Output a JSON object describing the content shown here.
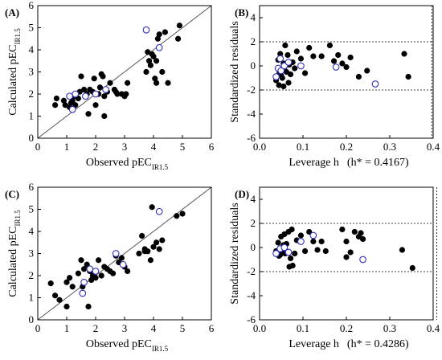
{
  "chart_data": [
    {
      "type": "scatter",
      "panel": "(A)",
      "xlabel": "Observed pEC",
      "xlabel_sub": "IR1.5",
      "ylabel": "Calculated pEC",
      "ylabel_sub": "IR1.5",
      "xlim": [
        0,
        6
      ],
      "ylim": [
        0,
        6
      ],
      "xticks": [
        "0",
        "1",
        "2",
        "3",
        "4",
        "5",
        "6"
      ],
      "yticks": [
        "0",
        "1",
        "2",
        "3",
        "4",
        "5",
        "6"
      ],
      "diagonal": true,
      "grid": false,
      "series": [
        {
          "marker": "filled",
          "color": "#000000",
          "points": [
            [
              0.6,
              1.5
            ],
            [
              0.65,
              1.8
            ],
            [
              0.9,
              1.7
            ],
            [
              0.95,
              1.5
            ],
            [
              1.1,
              1.4
            ],
            [
              1.15,
              1.6
            ],
            [
              1.2,
              1.7
            ],
            [
              1.25,
              1.9
            ],
            [
              1.3,
              1.5
            ],
            [
              1.4,
              1.8
            ],
            [
              1.45,
              2.1
            ],
            [
              1.5,
              2.8
            ],
            [
              1.6,
              2.2
            ],
            [
              1.7,
              2.0
            ],
            [
              1.8,
              2.2
            ],
            [
              1.9,
              2.1
            ],
            [
              1.95,
              2.7
            ],
            [
              2.0,
              1.5
            ],
            [
              2.1,
              2.0
            ],
            [
              2.15,
              2.3
            ],
            [
              2.2,
              2.9
            ],
            [
              2.25,
              2.8
            ],
            [
              2.3,
              1.9
            ],
            [
              2.4,
              2.1
            ],
            [
              2.5,
              2.5
            ],
            [
              2.65,
              2.2
            ],
            [
              2.7,
              2.1
            ],
            [
              2.75,
              2.0
            ],
            [
              2.9,
              2.0
            ],
            [
              3.0,
              1.9
            ],
            [
              3.05,
              2.0
            ],
            [
              3.1,
              2.5
            ],
            [
              3.75,
              3.0
            ],
            [
              3.8,
              3.9
            ],
            [
              3.85,
              3.5
            ],
            [
              3.9,
              3.3
            ],
            [
              3.95,
              3.8
            ],
            [
              4.0,
              3.7
            ],
            [
              4.05,
              2.7
            ],
            [
              4.1,
              3.5
            ],
            [
              4.15,
              4.5
            ],
            [
              4.2,
              4.7
            ],
            [
              4.3,
              3.0
            ],
            [
              4.4,
              4.8
            ],
            [
              4.5,
              2.5
            ],
            [
              4.85,
              4.5
            ],
            [
              4.9,
              5.1
            ],
            [
              4.1,
              2.5
            ],
            [
              1.75,
              1.1
            ],
            [
              2.3,
              1.0
            ]
          ]
        },
        {
          "marker": "open",
          "color": "#3333bb",
          "points": [
            [
              1.1,
              1.9
            ],
            [
              1.2,
              1.3
            ],
            [
              1.3,
              2.0
            ],
            [
              1.65,
              1.9
            ],
            [
              2.0,
              2.0
            ],
            [
              2.35,
              2.2
            ],
            [
              3.75,
              4.9
            ],
            [
              4.2,
              4.1
            ]
          ]
        }
      ]
    },
    {
      "type": "scatter",
      "panel": "(B)",
      "xlabel": "Leverage h",
      "annotation": "(h* = 0.4167)",
      "ylabel": "Standardized residuals",
      "xlim": [
        0,
        0.42
      ],
      "ylim": [
        -6,
        5
      ],
      "xticks": [
        "0.0",
        "0.1",
        "0.2",
        "0.3",
        "0.4"
      ],
      "yticks": [
        "-6",
        "-4",
        "-2",
        "0",
        "2",
        "4"
      ],
      "hlines": [
        2,
        -2
      ],
      "vline": 0.4167,
      "grid": false,
      "series": [
        {
          "marker": "filled",
          "color": "#000000",
          "points": [
            [
              0.04,
              -1.2
            ],
            [
              0.045,
              0.5
            ],
            [
              0.048,
              -0.6
            ],
            [
              0.05,
              1.0
            ],
            [
              0.052,
              -0.8
            ],
            [
              0.055,
              -1.0
            ],
            [
              0.058,
              0.2
            ],
            [
              0.06,
              -0.3
            ],
            [
              0.062,
              1.7
            ],
            [
              0.065,
              -0.5
            ],
            [
              0.068,
              0.9
            ],
            [
              0.07,
              -1.4
            ],
            [
              0.075,
              -0.7
            ],
            [
              0.08,
              0.3
            ],
            [
              0.085,
              -0.2
            ],
            [
              0.09,
              1.2
            ],
            [
              0.1,
              0.6
            ],
            [
              0.11,
              -0.6
            ],
            [
              0.12,
              1.5
            ],
            [
              0.13,
              0.8
            ],
            [
              0.15,
              0.8
            ],
            [
              0.17,
              1.7
            ],
            [
              0.18,
              0.4
            ],
            [
              0.19,
              0.9
            ],
            [
              0.2,
              0.2
            ],
            [
              0.21,
              -0.1
            ],
            [
              0.22,
              0.7
            ],
            [
              0.24,
              -0.9
            ],
            [
              0.26,
              -0.4
            ],
            [
              0.35,
              1.0
            ],
            [
              0.36,
              -0.9
            ],
            [
              0.047,
              -1.6
            ],
            [
              0.058,
              -1.7
            ],
            [
              0.072,
              0.1
            ]
          ]
        },
        {
          "marker": "open",
          "color": "#3333bb",
          "points": [
            [
              0.04,
              -0.9
            ],
            [
              0.045,
              -0.2
            ],
            [
              0.05,
              0.6
            ],
            [
              0.052,
              -0.4
            ],
            [
              0.06,
              0.0
            ],
            [
              0.07,
              0.3
            ],
            [
              0.1,
              0.0
            ],
            [
              0.185,
              -0.1
            ],
            [
              0.28,
              -1.5
            ]
          ]
        }
      ]
    },
    {
      "type": "scatter",
      "panel": "(C)",
      "xlabel": "Observed pEC",
      "xlabel_sub": "IR1.5",
      "ylabel": "Calculated pEC",
      "ylabel_sub": "IR1.5",
      "xlim": [
        0,
        6
      ],
      "ylim": [
        0,
        6
      ],
      "xticks": [
        "0",
        "1",
        "2",
        "3",
        "4",
        "5",
        "6"
      ],
      "yticks": [
        "0",
        "1",
        "2",
        "3",
        "4",
        "5",
        "6"
      ],
      "diagonal": true,
      "grid": false,
      "series": [
        {
          "marker": "filled",
          "color": "#000000",
          "points": [
            [
              0.45,
              1.65
            ],
            [
              0.6,
              1.1
            ],
            [
              0.75,
              0.9
            ],
            [
              1.0,
              1.7
            ],
            [
              1.1,
              1.9
            ],
            [
              1.2,
              1.5
            ],
            [
              1.4,
              2.1
            ],
            [
              1.5,
              2.7
            ],
            [
              1.55,
              1.5
            ],
            [
              1.6,
              2.3
            ],
            [
              1.7,
              2.5
            ],
            [
              1.75,
              0.6
            ],
            [
              1.8,
              2.2
            ],
            [
              1.85,
              1.8
            ],
            [
              1.9,
              2.0
            ],
            [
              2.0,
              2.2
            ],
            [
              2.1,
              2.7
            ],
            [
              2.2,
              2.0
            ],
            [
              2.3,
              2.4
            ],
            [
              2.4,
              2.3
            ],
            [
              2.5,
              2.2
            ],
            [
              2.6,
              2.1
            ],
            [
              2.7,
              2.9
            ],
            [
              2.8,
              2.6
            ],
            [
              2.9,
              2.8
            ],
            [
              3.0,
              2.4
            ],
            [
              3.1,
              2.2
            ],
            [
              3.5,
              3.0
            ],
            [
              3.6,
              3.8
            ],
            [
              3.7,
              3.2
            ],
            [
              3.8,
              3.1
            ],
            [
              3.9,
              2.7
            ],
            [
              3.95,
              5.1
            ],
            [
              4.0,
              3.3
            ],
            [
              4.1,
              3.5
            ],
            [
              4.2,
              3.2
            ],
            [
              4.3,
              3.6
            ],
            [
              4.8,
              4.7
            ],
            [
              5.0,
              4.8
            ],
            [
              1.0,
              0.6
            ],
            [
              2.0,
              1.9
            ],
            [
              3.7,
              3.1
            ]
          ]
        },
        {
          "marker": "open",
          "color": "#3333bb",
          "points": [
            [
              1.55,
              1.2
            ],
            [
              1.6,
              1.7
            ],
            [
              1.8,
              2.3
            ],
            [
              2.0,
              2.2
            ],
            [
              2.7,
              3.0
            ],
            [
              2.95,
              2.5
            ],
            [
              4.2,
              4.9
            ]
          ]
        }
      ]
    },
    {
      "type": "scatter",
      "panel": "(D)",
      "xlabel": "Leverage h",
      "annotation": "(h* = 0.4286)",
      "ylabel": "Standardized residuals",
      "xlim": [
        0,
        0.42
      ],
      "ylim": [
        -6,
        5
      ],
      "xticks": [
        "0.0",
        "0.1",
        "0.2",
        "0.3",
        "0.4"
      ],
      "yticks": [
        "-6",
        "-4",
        "-2",
        "0",
        "2",
        "4"
      ],
      "hlines": [
        2,
        -2
      ],
      "vline": 0.4286,
      "grid": false,
      "series": [
        {
          "marker": "filled",
          "color": "#000000",
          "points": [
            [
              0.04,
              -0.3
            ],
            [
              0.045,
              0.4
            ],
            [
              0.05,
              -0.6
            ],
            [
              0.052,
              0.9
            ],
            [
              0.055,
              -0.2
            ],
            [
              0.058,
              0.2
            ],
            [
              0.06,
              1.1
            ],
            [
              0.062,
              -0.5
            ],
            [
              0.065,
              0.3
            ],
            [
              0.07,
              1.3
            ],
            [
              0.072,
              -1.6
            ],
            [
              0.075,
              -0.9
            ],
            [
              0.078,
              1.5
            ],
            [
              0.08,
              -1.5
            ],
            [
              0.085,
              -0.5
            ],
            [
              0.09,
              0.6
            ],
            [
              0.1,
              1.0
            ],
            [
              0.11,
              -0.3
            ],
            [
              0.12,
              1.3
            ],
            [
              0.13,
              0.5
            ],
            [
              0.14,
              -0.2
            ],
            [
              0.15,
              0.5
            ],
            [
              0.16,
              -0.3
            ],
            [
              0.2,
              1.5
            ],
            [
              0.21,
              0.5
            ],
            [
              0.22,
              -0.4
            ],
            [
              0.23,
              1.3
            ],
            [
              0.24,
              0.9
            ],
            [
              0.245,
              1.2
            ],
            [
              0.25,
              0.7
            ],
            [
              0.21,
              -0.8
            ],
            [
              0.345,
              -0.2
            ],
            [
              0.37,
              -1.7
            ],
            [
              0.047,
              -0.7
            ],
            [
              0.065,
              -0.3
            ]
          ]
        },
        {
          "marker": "open",
          "color": "#3333bb",
          "points": [
            [
              0.04,
              -0.5
            ],
            [
              0.05,
              -0.1
            ],
            [
              0.06,
              0.0
            ],
            [
              0.07,
              -0.4
            ],
            [
              0.1,
              0.5
            ],
            [
              0.13,
              1.0
            ],
            [
              0.25,
              -1.0
            ]
          ]
        }
      ]
    }
  ]
}
